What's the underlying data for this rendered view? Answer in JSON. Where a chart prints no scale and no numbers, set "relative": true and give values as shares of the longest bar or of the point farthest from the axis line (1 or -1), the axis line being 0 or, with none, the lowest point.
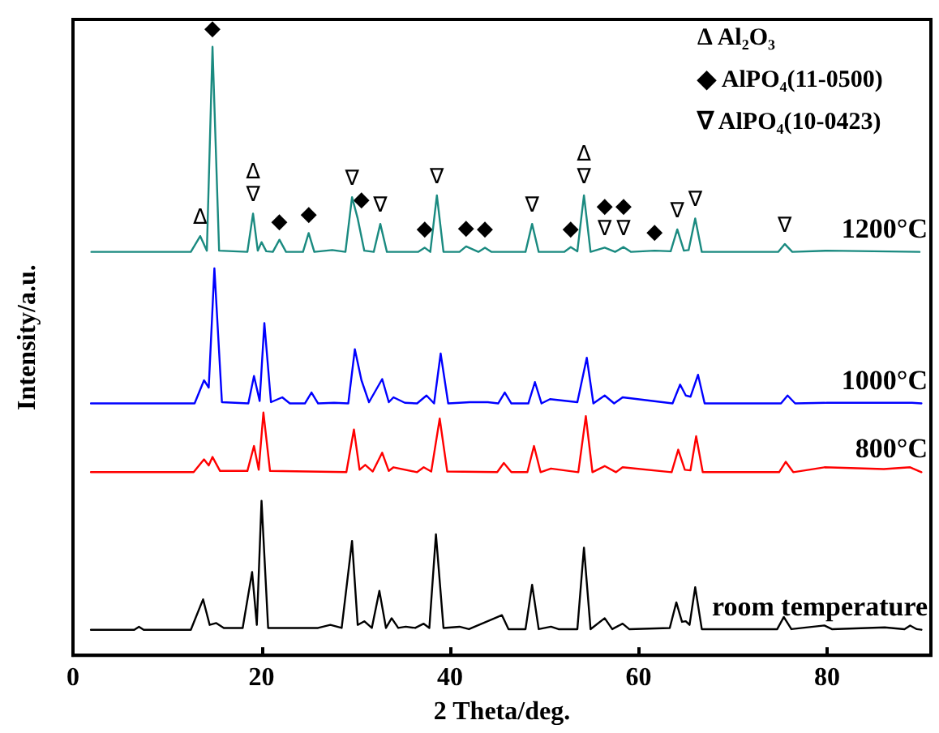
{
  "chart_data": {
    "type": "line",
    "relative": true,
    "xlabel": "2 Theta/deg.",
    "ylabel": "Intensity/a.u.",
    "xlim": [
      0,
      91
    ],
    "xticks": [
      0,
      20,
      40,
      60,
      80
    ],
    "grid": false,
    "legend": false,
    "marker": "none",
    "line_style": "solid",
    "series": [
      {
        "name": "room temperature",
        "color": "#000000",
        "x": [
          1.9,
          6.5,
          7,
          7.5,
          12.5,
          13.8,
          14.5,
          15.2,
          16,
          18,
          19.0,
          19.5,
          20.0,
          20.7,
          26,
          27.3,
          28.5,
          29.6,
          30.2,
          30.9,
          31.7,
          32.5,
          33.2,
          33.8,
          34.5,
          35.3,
          36.3,
          37.2,
          37.8,
          38.5,
          39.3,
          41,
          42,
          45.5,
          46.2,
          48.0,
          48.7,
          49.4,
          50.7,
          51.5,
          53.5,
          54.2,
          54.9,
          56.4,
          57.2,
          58.3,
          59,
          63.3,
          64.0,
          64.6,
          65.0,
          65.4,
          66.0,
          66.7,
          74.7,
          75.4,
          76.2,
          79.7,
          80.5,
          86.1,
          88.2,
          88.8,
          89.5,
          90.0
        ],
        "values": [
          0.042,
          0.042,
          0.047,
          0.042,
          0.042,
          0.092,
          0.05,
          0.053,
          0.045,
          0.045,
          0.137,
          0.05,
          0.254,
          0.045,
          0.045,
          0.05,
          0.045,
          0.188,
          0.05,
          0.056,
          0.045,
          0.106,
          0.045,
          0.061,
          0.045,
          0.047,
          0.045,
          0.052,
          0.045,
          0.199,
          0.045,
          0.047,
          0.043,
          0.066,
          0.043,
          0.043,
          0.116,
          0.043,
          0.047,
          0.043,
          0.043,
          0.177,
          0.043,
          0.061,
          0.043,
          0.052,
          0.043,
          0.045,
          0.087,
          0.055,
          0.056,
          0.05,
          0.112,
          0.043,
          0.043,
          0.063,
          0.043,
          0.049,
          0.043,
          0.046,
          0.043,
          0.049,
          0.043,
          0.042
        ]
      },
      {
        "name": "800°C",
        "color": "#ff0000",
        "x": [
          1.9,
          12.8,
          13.9,
          14.4,
          14.8,
          15.6,
          18.5,
          19.2,
          19.7,
          20.2,
          20.9,
          29.0,
          29.8,
          30.4,
          31.0,
          31.8,
          32.8,
          33.5,
          34.0,
          36.5,
          37.2,
          38.0,
          38.9,
          39.7,
          45.0,
          45.7,
          46.5,
          48.2,
          48.9,
          49.6,
          50.7,
          53.6,
          54.4,
          55.1,
          56.4,
          57.6,
          58.3,
          63.5,
          64.2,
          64.9,
          65.5,
          66.1,
          66.8,
          74.9,
          75.6,
          76.4,
          79.7,
          86.0,
          88.8,
          90.0
        ],
        "values": [
          0.301,
          0.301,
          0.322,
          0.312,
          0.326,
          0.303,
          0.303,
          0.344,
          0.305,
          0.399,
          0.303,
          0.301,
          0.371,
          0.305,
          0.313,
          0.302,
          0.333,
          0.303,
          0.309,
          0.301,
          0.309,
          0.302,
          0.389,
          0.302,
          0.301,
          0.316,
          0.301,
          0.301,
          0.344,
          0.301,
          0.307,
          0.301,
          0.393,
          0.301,
          0.311,
          0.301,
          0.309,
          0.301,
          0.338,
          0.305,
          0.304,
          0.36,
          0.301,
          0.301,
          0.318,
          0.301,
          0.309,
          0.306,
          0.309,
          0.301
        ]
      },
      {
        "name": "1000°C",
        "color": "#0000ff",
        "x": [
          1.9,
          12.9,
          13.9,
          14.4,
          15.0,
          15.8,
          18.6,
          19.2,
          19.8,
          20.3,
          21.0,
          22.2,
          23.0,
          24.6,
          25.3,
          26.0,
          27.7,
          29.2,
          29.9,
          30.6,
          31.4,
          32.8,
          33.5,
          34.0,
          35.2,
          36.5,
          37.5,
          38.3,
          39.0,
          39.8,
          41,
          42.1,
          44,
          45.1,
          45.8,
          46.5,
          48.3,
          49.0,
          49.7,
          50.6,
          53.5,
          54.5,
          55.2,
          56.4,
          57.4,
          58.3,
          63.6,
          64.4,
          65.0,
          65.5,
          66.3,
          67.0,
          75.1,
          75.8,
          76.6,
          80,
          86,
          89,
          90.0
        ],
        "values": [
          0.414,
          0.414,
          0.452,
          0.44,
          0.636,
          0.416,
          0.414,
          0.459,
          0.418,
          0.546,
          0.416,
          0.424,
          0.414,
          0.414,
          0.432,
          0.414,
          0.415,
          0.414,
          0.503,
          0.452,
          0.416,
          0.454,
          0.416,
          0.424,
          0.415,
          0.414,
          0.427,
          0.414,
          0.496,
          0.414,
          0.415,
          0.416,
          0.416,
          0.414,
          0.432,
          0.414,
          0.414,
          0.449,
          0.414,
          0.421,
          0.416,
          0.489,
          0.414,
          0.427,
          0.414,
          0.424,
          0.414,
          0.445,
          0.427,
          0.425,
          0.461,
          0.414,
          0.414,
          0.427,
          0.414,
          0.415,
          0.415,
          0.415,
          0.414
        ]
      },
      {
        "name": "1200°C",
        "color": "#1a8a80",
        "x": [
          1.95,
          12.5,
          13.5,
          14.2,
          14.8,
          15.5,
          18.5,
          19.1,
          19.6,
          20.0,
          20.5,
          21.2,
          21.9,
          22.6,
          24.4,
          25.0,
          25.6,
          27.5,
          28.9,
          29.6,
          30.2,
          30.9,
          31.9,
          32.6,
          33.3,
          36.6,
          37.3,
          37.9,
          38.6,
          39.3,
          41.0,
          41.7,
          43.0,
          43.7,
          44.4,
          48.0,
          48.7,
          49.4,
          52.1,
          52.8,
          53.5,
          54.2,
          54.9,
          56.4,
          57.5,
          58.4,
          59.2,
          61.7,
          63.4,
          64.1,
          64.8,
          65.3,
          66.0,
          66.7,
          74.8,
          75.5,
          76.3,
          80,
          89.8
        ],
        "values": [
          0.663,
          0.663,
          0.689,
          0.665,
          1,
          0.665,
          0.663,
          0.726,
          0.665,
          0.679,
          0.664,
          0.663,
          0.683,
          0.663,
          0.663,
          0.694,
          0.663,
          0.666,
          0.663,
          0.753,
          0.718,
          0.665,
          0.663,
          0.709,
          0.663,
          0.663,
          0.67,
          0.663,
          0.756,
          0.663,
          0.663,
          0.672,
          0.663,
          0.67,
          0.663,
          0.663,
          0.709,
          0.663,
          0.663,
          0.671,
          0.664,
          0.756,
          0.663,
          0.67,
          0.663,
          0.671,
          0.663,
          0.665,
          0.664,
          0.7,
          0.665,
          0.666,
          0.718,
          0.663,
          0.663,
          0.676,
          0.663,
          0.665,
          0.663
        ]
      }
    ],
    "annotations": [
      "Δ Al₂O₃",
      "◆ AlPO₄(11-0500)",
      "∇ AlPO₄(10-0423)",
      {
        "text": "Δ",
        "x": 13.5,
        "y": 0.689
      },
      {
        "text": "◆",
        "x": 14.8,
        "y": 1
      },
      {
        "text": "Δ\n∇",
        "x": 19.1,
        "y": 0.726
      },
      {
        "text": "◆",
        "x": 21.9,
        "y": 0.683
      },
      {
        "text": "◆",
        "x": 25.0,
        "y": 0.694
      },
      {
        "text": "∇",
        "x": 29.6,
        "y": 0.753
      },
      {
        "text": "◆",
        "x": 30.6,
        "y": 0.718
      },
      {
        "text": "∇",
        "x": 32.6,
        "y": 0.709
      },
      {
        "text": "◆",
        "x": 37.3,
        "y": 0.67
      },
      {
        "text": "∇",
        "x": 38.6,
        "y": 0.756
      },
      {
        "text": "◆",
        "x": 41.7,
        "y": 0.672
      },
      {
        "text": "◆",
        "x": 43.7,
        "y": 0.67
      },
      {
        "text": "∇",
        "x": 48.7,
        "y": 0.709
      },
      {
        "text": "◆",
        "x": 52.8,
        "y": 0.671
      },
      {
        "text": "Δ\n∇",
        "x": 54.2,
        "y": 0.756
      },
      {
        "text": "◆\n∇",
        "x": 56.4,
        "y": 0.67
      },
      {
        "text": "◆\n∇",
        "x": 58.4,
        "y": 0.671
      },
      {
        "text": "◆",
        "x": 61.7,
        "y": 0.665
      },
      {
        "text": "∇",
        "x": 64.1,
        "y": 0.7
      },
      {
        "text": "∇",
        "x": 66.0,
        "y": 0.718
      },
      {
        "text": "∇",
        "x": 75.5,
        "y": 0.676
      }
    ]
  }
}
